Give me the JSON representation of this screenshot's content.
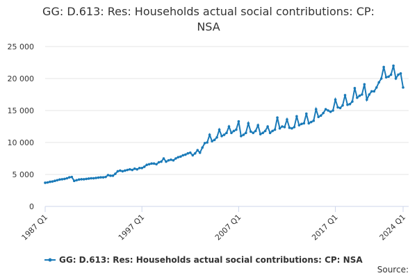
{
  "chart_data": {
    "type": "line",
    "title": "GG: D.613: Res: Households actual social contributions: CP: NSA",
    "source": "Source:",
    "categories": [
      "1987 Q1",
      null,
      null,
      null,
      null,
      null,
      null,
      null,
      null,
      null,
      null,
      null,
      null,
      null,
      null,
      null,
      null,
      null,
      null,
      null,
      null,
      null,
      null,
      null,
      null,
      null,
      null,
      null,
      null,
      null,
      null,
      null,
      null,
      null,
      null,
      null,
      null,
      null,
      null,
      null,
      "1997 Q1",
      null,
      null,
      null,
      null,
      null,
      null,
      null,
      null,
      null,
      null,
      null,
      null,
      null,
      null,
      null,
      null,
      null,
      null,
      null,
      null,
      null,
      null,
      null,
      null,
      null,
      null,
      null,
      null,
      null,
      null,
      null,
      null,
      null,
      null,
      null,
      null,
      null,
      null,
      null,
      "2007 Q1",
      null,
      null,
      null,
      null,
      null,
      null,
      null,
      null,
      null,
      null,
      null,
      null,
      null,
      null,
      null,
      null,
      null,
      null,
      null,
      null,
      null,
      null,
      null,
      null,
      null,
      null,
      null,
      null,
      null,
      null,
      null,
      null,
      null,
      null,
      null,
      null,
      null,
      null,
      null,
      "2017 Q1",
      null,
      null,
      null,
      null,
      null,
      null,
      null,
      null,
      null,
      null,
      null,
      null,
      null,
      null,
      null,
      null,
      null,
      null,
      null,
      null,
      null,
      null,
      null,
      null,
      null,
      null,
      null,
      "2024 Q1"
    ],
    "series": [
      {
        "name": "GG: D.613: Res: Households actual social contributions: CP: NSA",
        "color": "#1a7ab8",
        "values": [
          3700,
          3750,
          3850,
          3900,
          4000,
          4100,
          4200,
          4250,
          4300,
          4400,
          4550,
          4600,
          4000,
          4100,
          4200,
          4250,
          4250,
          4300,
          4350,
          4400,
          4400,
          4450,
          4500,
          4550,
          4550,
          4600,
          4900,
          4800,
          4800,
          5100,
          5500,
          5600,
          5500,
          5600,
          5700,
          5800,
          5700,
          5900,
          5800,
          6000,
          6000,
          6200,
          6500,
          6600,
          6700,
          6700,
          6600,
          6900,
          7000,
          7500,
          7000,
          7200,
          7300,
          7200,
          7500,
          7700,
          7800,
          8000,
          8100,
          8300,
          8400,
          8000,
          8300,
          8800,
          8400,
          9200,
          9900,
          10000,
          11200,
          10200,
          10400,
          10800,
          12000,
          11000,
          11200,
          11500,
          12500,
          11500,
          11800,
          12000,
          13300,
          11000,
          11200,
          11500,
          13000,
          11700,
          11500,
          11800,
          12700,
          11300,
          11500,
          11800,
          12500,
          11500,
          11800,
          12000,
          13900,
          12200,
          12500,
          12400,
          13600,
          12300,
          12200,
          12400,
          14100,
          12700,
          12900,
          13000,
          14500,
          13000,
          13200,
          13400,
          15200,
          14000,
          14200,
          14600,
          15200,
          15000,
          14800,
          15000,
          16700,
          15500,
          15400,
          15800,
          17400,
          15900,
          16000,
          16400,
          18500,
          17000,
          17300,
          17500,
          19100,
          16700,
          17500,
          18000,
          18000,
          18600,
          19400,
          20000,
          21800,
          20200,
          20300,
          20600,
          22000,
          20000,
          20600,
          20800,
          18600
        ]
      }
    ],
    "ylim": [
      0,
      25000
    ],
    "yticks": [
      0,
      {
        "value": 5000,
        "label": "5 000"
      },
      {
        "value": 10000,
        "label": "10 000"
      },
      {
        "value": 15000,
        "label": "15 000"
      },
      {
        "value": 20000,
        "label": "20 000"
      },
      {
        "value": 25000,
        "label": "25 000"
      }
    ],
    "grid": true
  }
}
